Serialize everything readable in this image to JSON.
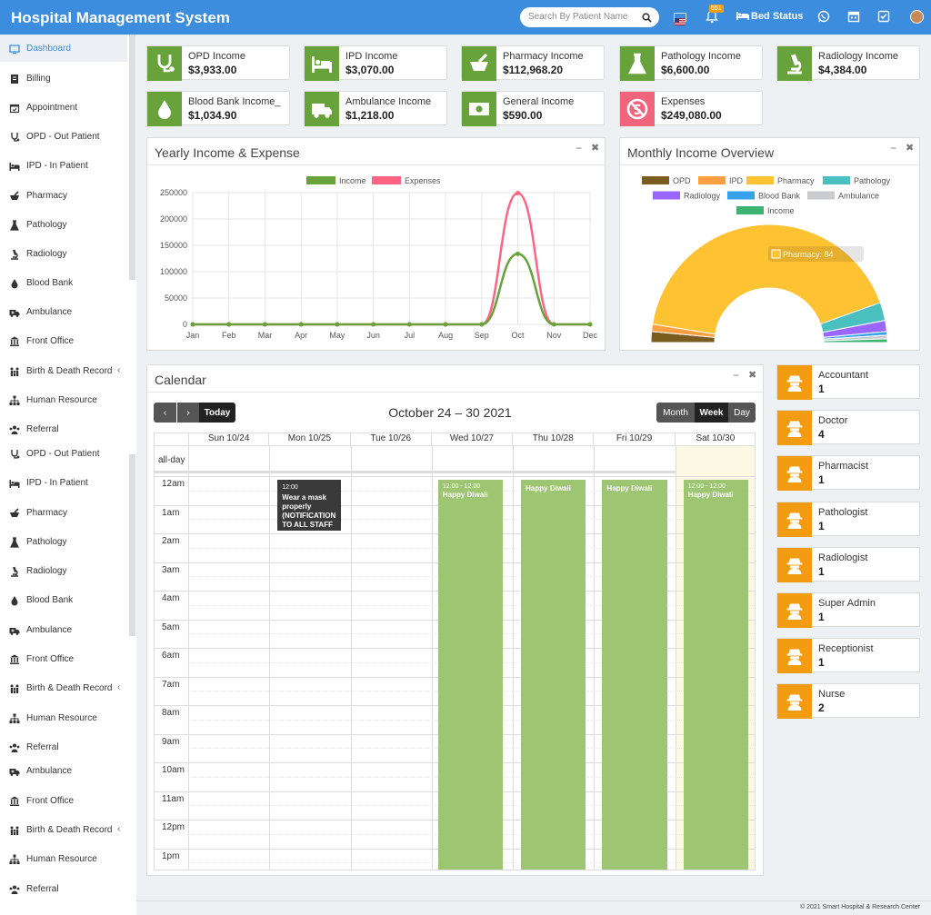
{
  "app_title": "Hospital Management System",
  "search_placeholder": "Search By Patient Name",
  "notification_count": "551",
  "bed_status": "Bed Status",
  "sidebar": [
    {
      "label": "Dashboard",
      "icon": "monitor-icon",
      "active": true
    },
    {
      "label": "Billing",
      "icon": "receipt-icon"
    },
    {
      "label": "Appointment",
      "icon": "calendar-check-icon"
    },
    {
      "label": "OPD - Out Patient",
      "icon": "stethoscope-icon"
    },
    {
      "label": "IPD - In Patient",
      "icon": "bed-icon"
    },
    {
      "label": "Pharmacy",
      "icon": "mortar-icon"
    },
    {
      "label": "Pathology",
      "icon": "flask-icon"
    },
    {
      "label": "Radiology",
      "icon": "microscope-icon"
    },
    {
      "label": "Blood Bank",
      "icon": "drop-icon"
    },
    {
      "label": "Ambulance",
      "icon": "ambulance-icon"
    },
    {
      "label": "Front Office",
      "icon": "building-icon"
    },
    {
      "label": "Birth & Death Record",
      "icon": "family-icon",
      "chevron": true
    },
    {
      "label": "Human Resource",
      "icon": "sitemap-icon"
    },
    {
      "label": "Referral",
      "icon": "users-icon"
    },
    {
      "label": "OPD - Out Patient",
      "icon": "stethoscope-icon"
    },
    {
      "label": "IPD - In Patient",
      "icon": "bed-icon"
    },
    {
      "label": "Pharmacy",
      "icon": "mortar-icon"
    },
    {
      "label": "Pathology",
      "icon": "flask-icon"
    },
    {
      "label": "Radiology",
      "icon": "microscope-icon"
    },
    {
      "label": "Blood Bank",
      "icon": "drop-icon"
    },
    {
      "label": "Ambulance",
      "icon": "ambulance-icon"
    },
    {
      "label": "Front Office",
      "icon": "building-icon"
    },
    {
      "label": "Birth & Death Record",
      "icon": "family-icon",
      "chevron": true
    },
    {
      "label": "Human Resource",
      "icon": "sitemap-icon"
    },
    {
      "label": "Referral",
      "icon": "users-icon"
    },
    {
      "label": "Ambulance",
      "icon": "ambulance-icon"
    },
    {
      "label": "Front Office",
      "icon": "building-icon"
    },
    {
      "label": "Birth & Death Record",
      "icon": "family-icon",
      "chevron": true
    },
    {
      "label": "Human Resource",
      "icon": "sitemap-icon"
    },
    {
      "label": "Referral",
      "icon": "users-icon"
    }
  ],
  "income_cards": [
    {
      "title": "OPD Income",
      "value": "$3,933.00",
      "icon": "stethoscope-icon",
      "color": "#67a23a"
    },
    {
      "title": "IPD Income",
      "value": "$3,070.00",
      "icon": "bed-icon",
      "color": "#67a23a"
    },
    {
      "title": "Pharmacy Income",
      "value": "$112,968.20",
      "icon": "mortar-icon",
      "color": "#67a23a"
    },
    {
      "title": "Pathology Income",
      "value": "$6,600.00",
      "icon": "flask-icon",
      "color": "#67a23a"
    },
    {
      "title": "Radiology Income",
      "value": "$4,384.00",
      "icon": "microscope-icon",
      "color": "#67a23a"
    },
    {
      "title": "Blood Bank Income_",
      "value": "$1,034.90",
      "icon": "drop-icon",
      "color": "#67a23a"
    },
    {
      "title": "Ambulance Income",
      "value": "$1,218.00",
      "icon": "ambulance-icon",
      "color": "#67a23a"
    },
    {
      "title": "General Income",
      "value": "$590.00",
      "icon": "money-icon",
      "color": "#67a23a"
    },
    {
      "title": "Expenses",
      "value": "$249,080.00",
      "icon": "no-money-icon",
      "color": "#f0657b"
    }
  ],
  "yearly_panel": {
    "title": "Yearly Income & Expense"
  },
  "monthly_panel": {
    "title": "Monthly Income Overview",
    "tooltip": "Pharmacy: 84"
  },
  "calendar_panel": {
    "title": "Calendar",
    "range": "October 24 – 30 2021",
    "today": "Today",
    "views": [
      "Month",
      "Week",
      "Day"
    ],
    "active_view": "Week",
    "allday": "all-day",
    "days": [
      "Sun 10/24",
      "Mon 10/25",
      "Tue 10/26",
      "Wed 10/27",
      "Thu 10/28",
      "Fri 10/29",
      "Sat 10/30"
    ],
    "hours": [
      "12am",
      "1am",
      "2am",
      "3am",
      "4am",
      "5am",
      "6am",
      "7am",
      "8am",
      "9am",
      "10am",
      "11am",
      "12pm",
      "1pm"
    ],
    "events": [
      {
        "day": 1,
        "time": "12:00",
        "title": "Wear a mask properly (NOTIFICATION TO ALL STAFF",
        "style": "dark"
      },
      {
        "day": 3,
        "time": "12:00 - 12:00",
        "title": "Happy Diwali",
        "style": "green"
      },
      {
        "day": 4,
        "time": "",
        "title": "Happy Diwali",
        "style": "green"
      },
      {
        "day": 5,
        "time": "",
        "title": "Happy Diwali",
        "style": "green"
      },
      {
        "day": 6,
        "time": "12:00 - 12:00",
        "title": "Happy Diwali",
        "style": "green"
      }
    ]
  },
  "staff": [
    {
      "title": "Accountant",
      "value": "1"
    },
    {
      "title": "Doctor",
      "value": "4"
    },
    {
      "title": "Pharmacist",
      "value": "1"
    },
    {
      "title": "Pathologist",
      "value": "1"
    },
    {
      "title": "Radiologist",
      "value": "1"
    },
    {
      "title": "Super Admin",
      "value": "1"
    },
    {
      "title": "Receptionist",
      "value": "1"
    },
    {
      "title": "Nurse",
      "value": "2"
    }
  ],
  "footer": "© 2021 Smart Hospital & Research Center",
  "chart_data": [
    {
      "type": "line",
      "title": "",
      "categories": [
        "Jan",
        "Feb",
        "Mar",
        "Apr",
        "May",
        "Jun",
        "Jul",
        "Aug",
        "Sep",
        "Oct",
        "Nov",
        "Dec"
      ],
      "ylim": [
        0,
        250000
      ],
      "yticks": [
        "0",
        "50000",
        "100000",
        "150000",
        "200000",
        "250000"
      ],
      "grid": true,
      "legend": "top",
      "series": [
        {
          "name": "Income",
          "color": "#67a23a",
          "values": [
            0,
            0,
            0,
            0,
            0,
            0,
            0,
            0,
            0,
            133768,
            0,
            0
          ]
        },
        {
          "name": "Expenses",
          "color": "#ff6384",
          "values": [
            0,
            0,
            0,
            0,
            0,
            0,
            0,
            0,
            0,
            249080,
            0,
            0
          ]
        }
      ]
    },
    {
      "type": "pie",
      "subtype": "half-doughnut",
      "legend": "top",
      "labels": [
        "OPD",
        "IPD",
        "Pharmacy",
        "Pathology",
        "Radiology",
        "Blood Bank",
        "Ambulance",
        "Income"
      ],
      "colors": [
        "#7a5c1e",
        "#ff9f40",
        "#ffc233",
        "#4bc0c0",
        "#9966ff",
        "#36a2eb",
        "#c9cbcf",
        "#3cb371"
      ],
      "values": [
        3,
        2,
        84,
        5,
        3,
        1,
        1,
        1
      ]
    }
  ]
}
